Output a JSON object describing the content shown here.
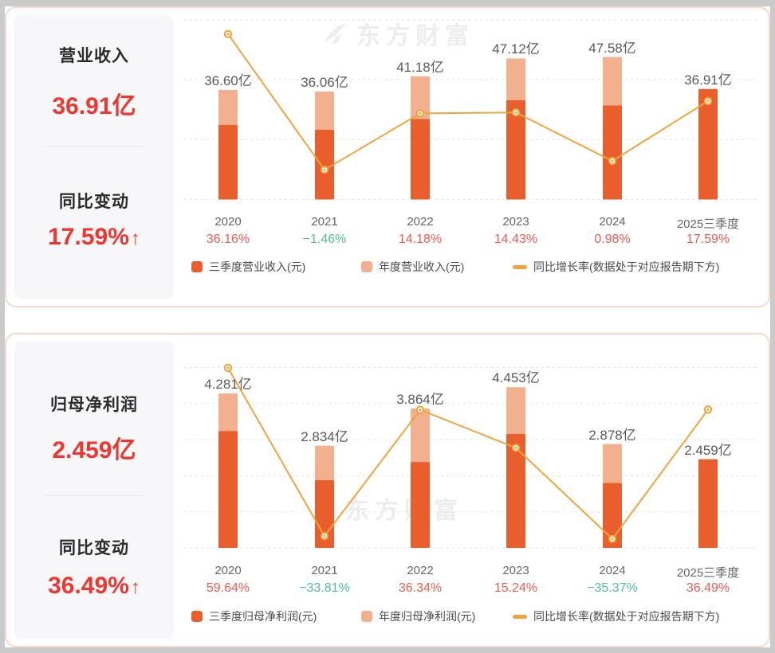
{
  "watermark": {
    "brand": "东方财富"
  },
  "colors": {
    "bar_q3": "#e85f2d",
    "bar_annual": "#f3b08f",
    "line": "#f2a33c",
    "pct_up_red": "#ee5a52",
    "pct_down_green": "#4fc193",
    "metric_red": "#f0352e",
    "category_text": "#666666",
    "value_label_text": "#5a5a5a",
    "legend_text": "#4a4a4a",
    "card_border": "#f7d7c7",
    "panel_bg": "#f7f7f9",
    "gridline": "#e3e3e9"
  },
  "cards": [
    {
      "panel": {
        "metric_label": "营业收入",
        "metric_value": "36.91亿",
        "change_label": "同比变动",
        "change_value": "17.59%",
        "arrow": "↑"
      }
    },
    {
      "panel": {
        "metric_label": "归母净利润",
        "metric_value": "2.459亿",
        "change_label": "同比变动",
        "change_value": "36.49%",
        "arrow": "↑"
      }
    }
  ],
  "chart_data": [
    {
      "type": "bar",
      "combo": "stacked-bar+line",
      "title": "营业收入",
      "unit": "亿",
      "categories": [
        "2020",
        "2021",
        "2022",
        "2023",
        "2024",
        "2025三季度"
      ],
      "series": [
        {
          "name": "三季度营业收入(元)",
          "role": "bar-stack-bottom",
          "values": [
            24.9,
            23.3,
            26.9,
            33.2,
            31.4,
            36.91
          ]
        },
        {
          "name": "年度营业收入(元)",
          "role": "bar-stack-top",
          "values": [
            36.6,
            36.06,
            41.18,
            47.12,
            47.58,
            null
          ]
        },
        {
          "name": "同比增长率(数据处于对应报告期下方)",
          "role": "line",
          "values": [
            36.16,
            -1.46,
            14.18,
            14.43,
            0.98,
            17.59
          ]
        }
      ],
      "bar_total_labels": [
        "36.60亿",
        "36.06亿",
        "41.18亿",
        "47.12亿",
        "47.58亿",
        "36.91亿"
      ],
      "pct_labels": [
        "36.16%",
        "−1.46%",
        "14.18%",
        "14.43%",
        "0.98%",
        "17.59%"
      ],
      "bar_ylim": [
        0,
        60
      ],
      "bar_grid_step": 20,
      "line_ylim": [
        -9.7,
        40.1
      ],
      "grid": "dashed-horizontal",
      "legend_position": "bottom"
    },
    {
      "type": "bar",
      "combo": "stacked-bar+line",
      "title": "归母净利润",
      "unit": "亿",
      "categories": [
        "2020",
        "2021",
        "2022",
        "2023",
        "2024",
        "2025三季度"
      ],
      "series": [
        {
          "name": "三季度归母净利润(元)",
          "role": "bar-stack-bottom",
          "values": [
            3.24,
            1.88,
            2.38,
            3.16,
            1.8,
            2.459
          ]
        },
        {
          "name": "年度归母净利润(元)",
          "role": "bar-stack-top",
          "values": [
            4.281,
            2.834,
            3.864,
            4.453,
            2.878,
            null
          ]
        },
        {
          "name": "同比增长率(数据处于对应报告期下方)",
          "role": "line",
          "values": [
            59.64,
            -33.81,
            36.34,
            15.24,
            -35.37,
            36.49
          ]
        }
      ],
      "bar_total_labels": [
        "4.281亿",
        "2.834亿",
        "3.864亿",
        "4.453亿",
        "2.878亿",
        "2.459亿"
      ],
      "pct_labels": [
        "59.64%",
        "−33.81%",
        "36.34%",
        "15.24%",
        "−35.37%",
        "36.49%"
      ],
      "bar_ylim": [
        0,
        5
      ],
      "bar_grid_step": 1,
      "line_ylim": [
        -40.34,
        59.84
      ],
      "grid": "dashed-horizontal",
      "legend_position": "bottom"
    }
  ]
}
